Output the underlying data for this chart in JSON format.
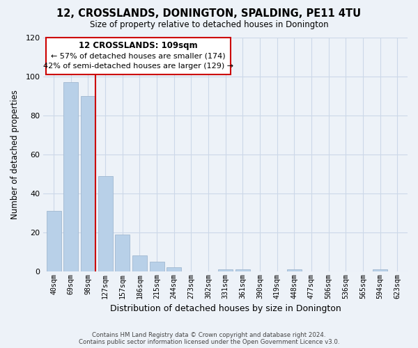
{
  "title": "12, CROSSLANDS, DONINGTON, SPALDING, PE11 4TU",
  "subtitle": "Size of property relative to detached houses in Donington",
  "xlabel": "Distribution of detached houses by size in Donington",
  "ylabel": "Number of detached properties",
  "bar_labels": [
    "40sqm",
    "69sqm",
    "98sqm",
    "127sqm",
    "157sqm",
    "186sqm",
    "215sqm",
    "244sqm",
    "273sqm",
    "302sqm",
    "331sqm",
    "361sqm",
    "390sqm",
    "419sqm",
    "448sqm",
    "477sqm",
    "506sqm",
    "536sqm",
    "565sqm",
    "594sqm",
    "623sqm"
  ],
  "bar_values": [
    31,
    97,
    90,
    49,
    19,
    8,
    5,
    2,
    0,
    0,
    1,
    1,
    0,
    0,
    1,
    0,
    0,
    0,
    0,
    1,
    0
  ],
  "bar_color": "#b8d0e8",
  "bar_edge_color": "#a0b8d0",
  "highlight_bar_index": 2,
  "vline_color": "#cc0000",
  "ylim": [
    0,
    120
  ],
  "yticks": [
    0,
    20,
    40,
    60,
    80,
    100,
    120
  ],
  "annotation_title": "12 CROSSLANDS: 109sqm",
  "annotation_line1": "← 57% of detached houses are smaller (174)",
  "annotation_line2": "42% of semi-detached houses are larger (129) →",
  "annotation_box_color": "#ffffff",
  "annotation_box_edge": "#cc0000",
  "grid_color": "#ccd8e8",
  "background_color": "#edf2f8",
  "footer_line1": "Contains HM Land Registry data © Crown copyright and database right 2024.",
  "footer_line2": "Contains public sector information licensed under the Open Government Licence v3.0."
}
